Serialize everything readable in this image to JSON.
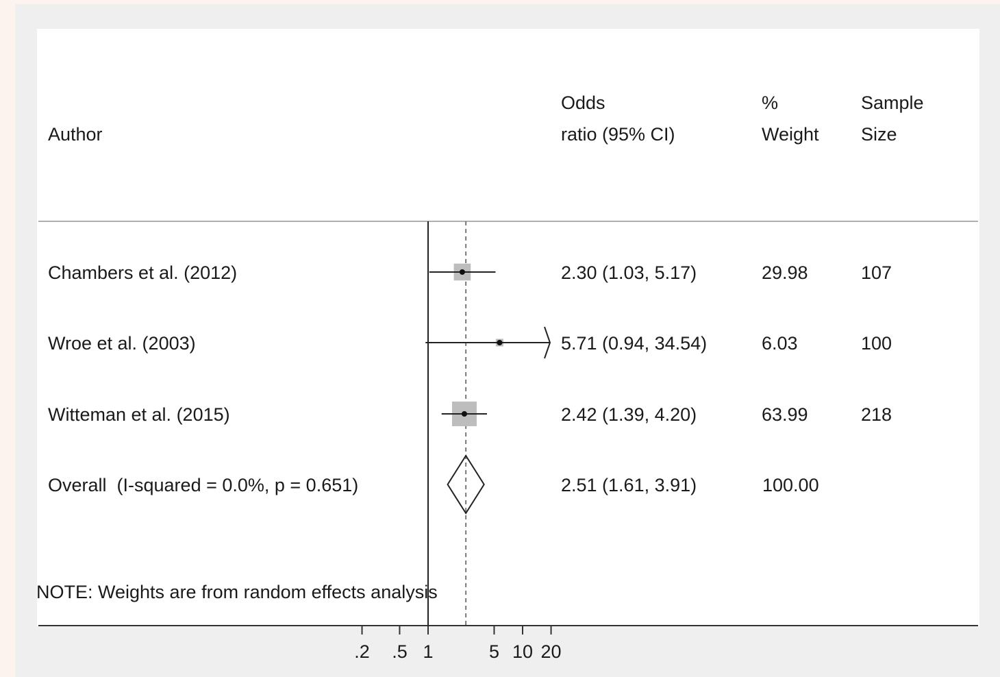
{
  "chart_data": {
    "type": "forest",
    "x_scale": "log",
    "reference_line": 1,
    "pooled_line": 2.51,
    "x_ticks": [
      {
        "value": 0.2,
        "label": ".2"
      },
      {
        "value": 0.5,
        "label": ".5"
      },
      {
        "value": 1,
        "label": "1"
      },
      {
        "value": 5,
        "label": "5"
      },
      {
        "value": 10,
        "label": "10"
      },
      {
        "value": 20,
        "label": "20"
      }
    ],
    "columns": {
      "author_header": "Author",
      "effect_header_line1": "Odds",
      "effect_header_line2": "ratio (95% CI)",
      "weight_header_line1": "%",
      "weight_header_line2": "Weight",
      "sample_header_line1": "Sample",
      "sample_header_line2": "Size"
    },
    "studies": [
      {
        "author": "Chambers et al. (2012)",
        "or": 2.3,
        "lower": 1.03,
        "upper": 5.17,
        "or_text": "2.30 (1.03, 5.17)",
        "weight": 29.98,
        "weight_text": "29.98",
        "sample": "107"
      },
      {
        "author": "Wroe et al. (2003)",
        "or": 5.71,
        "lower": 0.94,
        "upper": 34.54,
        "or_text": "5.71 (0.94, 34.54)",
        "weight": 6.03,
        "weight_text": "6.03",
        "sample": "100"
      },
      {
        "author": "Witteman et al. (2015)",
        "or": 2.42,
        "lower": 1.39,
        "upper": 4.2,
        "or_text": "2.42 (1.39, 4.20)",
        "weight": 63.99,
        "weight_text": "63.99",
        "sample": "218"
      }
    ],
    "overall": {
      "label": "Overall  (I-squared = 0.0%, p = 0.651)",
      "or": 2.51,
      "lower": 1.61,
      "upper": 3.91,
      "or_text": "2.51 (1.61, 3.91)",
      "weight_text": "100.00"
    },
    "note": "NOTE: Weights are from random effects analysis"
  }
}
